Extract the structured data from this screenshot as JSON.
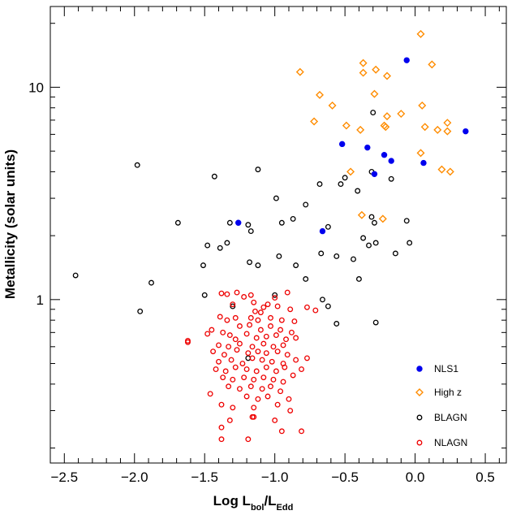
{
  "chart_data": {
    "type": "scatter",
    "title": "",
    "xlabel": {
      "base": "Log L",
      "sub1": "bol",
      "sep": "/L",
      "sub2": "Edd"
    },
    "ylabel": "Metallicity (solar units)",
    "xlim": [
      -2.6,
      0.65
    ],
    "ylim": [
      0.17,
      24
    ],
    "yscale": "log",
    "x_ticks": [
      {
        "value": -2.5,
        "label": "−2.5"
      },
      {
        "value": -2.0,
        "label": "−2.0"
      },
      {
        "value": -1.5,
        "label": "−1.5"
      },
      {
        "value": -1.0,
        "label": "−1.0"
      },
      {
        "value": -0.5,
        "label": "−0.5"
      },
      {
        "value": 0.0,
        "label": "0.0"
      },
      {
        "value": 0.5,
        "label": "0.5"
      }
    ],
    "y_ticks": [
      {
        "value": 1,
        "label": "1"
      },
      {
        "value": 10,
        "label": "10"
      }
    ],
    "legend_position": "bottom-right",
    "series": [
      {
        "name": "NLS1",
        "marker": "filled-circle",
        "color": "#0000ee",
        "points": [
          [
            -0.06,
            13.4
          ],
          [
            0.36,
            6.2
          ],
          [
            -0.52,
            5.4
          ],
          [
            -0.34,
            5.2
          ],
          [
            -0.22,
            4.8
          ],
          [
            -0.17,
            4.5
          ],
          [
            0.06,
            4.4
          ],
          [
            -0.29,
            3.9
          ],
          [
            -1.26,
            2.3
          ],
          [
            -0.66,
            2.1
          ]
        ]
      },
      {
        "name": "High z",
        "marker": "diamond",
        "color": "#ff8c00",
        "points": [
          [
            0.04,
            17.8
          ],
          [
            -0.37,
            13.0
          ],
          [
            0.12,
            12.8
          ],
          [
            -0.82,
            11.8
          ],
          [
            -0.37,
            11.7
          ],
          [
            -0.28,
            12.1
          ],
          [
            -0.2,
            11.3
          ],
          [
            -0.68,
            9.2
          ],
          [
            -0.29,
            9.3
          ],
          [
            -0.59,
            8.2
          ],
          [
            0.05,
            8.2
          ],
          [
            -0.2,
            7.3
          ],
          [
            -0.1,
            7.5
          ],
          [
            -0.72,
            6.9
          ],
          [
            -0.49,
            6.6
          ],
          [
            -0.22,
            6.6
          ],
          [
            -0.21,
            6.5
          ],
          [
            -0.39,
            6.3
          ],
          [
            0.07,
            6.5
          ],
          [
            0.16,
            6.3
          ],
          [
            0.23,
            6.2
          ],
          [
            0.23,
            6.8
          ],
          [
            0.04,
            4.9
          ],
          [
            0.19,
            4.1
          ],
          [
            0.25,
            4.0
          ],
          [
            -0.46,
            4.0
          ],
          [
            -0.38,
            2.5
          ],
          [
            -0.23,
            2.4
          ]
        ]
      },
      {
        "name": "BLAGN",
        "marker": "open-circle",
        "color": "#000000",
        "points": [
          [
            -1.98,
            4.3
          ],
          [
            -1.43,
            3.8
          ],
          [
            -1.12,
            4.1
          ],
          [
            -0.3,
            7.6
          ],
          [
            -0.5,
            3.75
          ],
          [
            -0.53,
            3.5
          ],
          [
            -0.41,
            3.25
          ],
          [
            -0.31,
            4.0
          ],
          [
            -0.17,
            3.7
          ],
          [
            -0.68,
            3.5
          ],
          [
            -0.99,
            3.0
          ],
          [
            -0.78,
            2.8
          ],
          [
            -0.87,
            2.4
          ],
          [
            -0.95,
            2.3
          ],
          [
            -1.32,
            2.3
          ],
          [
            -1.19,
            2.25
          ],
          [
            -1.17,
            2.1
          ],
          [
            -1.69,
            2.3
          ],
          [
            -0.62,
            2.2
          ],
          [
            -0.31,
            2.45
          ],
          [
            -0.29,
            2.3
          ],
          [
            -0.06,
            2.35
          ],
          [
            -0.37,
            1.95
          ],
          [
            -1.34,
            1.85
          ],
          [
            -1.39,
            1.75
          ],
          [
            -1.48,
            1.8
          ],
          [
            -1.51,
            1.45
          ],
          [
            -1.18,
            1.5
          ],
          [
            -1.12,
            1.45
          ],
          [
            -0.97,
            1.6
          ],
          [
            -0.85,
            1.45
          ],
          [
            -0.67,
            1.65
          ],
          [
            -0.56,
            1.6
          ],
          [
            -0.44,
            1.55
          ],
          [
            -0.33,
            1.8
          ],
          [
            -0.28,
            1.85
          ],
          [
            -0.14,
            1.65
          ],
          [
            -0.04,
            1.85
          ],
          [
            -0.78,
            1.25
          ],
          [
            -0.4,
            1.25
          ],
          [
            -2.42,
            1.3
          ],
          [
            -1.88,
            1.2
          ],
          [
            -1.5,
            1.05
          ],
          [
            -1.0,
            1.05
          ],
          [
            -0.66,
            1.0
          ],
          [
            -0.62,
            0.93
          ],
          [
            -1.3,
            0.93
          ],
          [
            -1.96,
            0.88
          ],
          [
            -0.56,
            0.77
          ],
          [
            -0.28,
            0.78
          ],
          [
            -1.19,
            0.53
          ]
        ]
      },
      {
        "name": "NLAGN",
        "marker": "open-circle",
        "color": "#ee0000",
        "points": [
          [
            -1.38,
            1.07
          ],
          [
            -1.34,
            1.06
          ],
          [
            -1.27,
            1.08
          ],
          [
            -1.22,
            1.03
          ],
          [
            -1.17,
            1.05
          ],
          [
            -1.0,
            1.02
          ],
          [
            -0.91,
            1.08
          ],
          [
            -1.15,
            0.97
          ],
          [
            -1.08,
            0.92
          ],
          [
            -1.3,
            0.95
          ],
          [
            -1.14,
            0.88
          ],
          [
            -1.1,
            0.87
          ],
          [
            -1.05,
            0.95
          ],
          [
            -0.98,
            0.93
          ],
          [
            -0.89,
            0.9
          ],
          [
            -0.77,
            0.92
          ],
          [
            -0.71,
            0.89
          ],
          [
            -1.39,
            0.83
          ],
          [
            -1.34,
            0.8
          ],
          [
            -1.28,
            0.82
          ],
          [
            -1.17,
            0.82
          ],
          [
            -1.12,
            0.8
          ],
          [
            -1.03,
            0.82
          ],
          [
            -0.95,
            0.8
          ],
          [
            -0.86,
            0.79
          ],
          [
            -1.45,
            0.72
          ],
          [
            -1.37,
            0.7
          ],
          [
            -1.25,
            0.75
          ],
          [
            -1.18,
            0.76
          ],
          [
            -1.1,
            0.72
          ],
          [
            -1.03,
            0.75
          ],
          [
            -0.96,
            0.72
          ],
          [
            -0.88,
            0.7
          ],
          [
            -1.48,
            0.69
          ],
          [
            -1.32,
            0.68
          ],
          [
            -1.28,
            0.65
          ],
          [
            -1.2,
            0.69
          ],
          [
            -1.13,
            0.66
          ],
          [
            -1.06,
            0.67
          ],
          [
            -0.99,
            0.68
          ],
          [
            -0.92,
            0.65
          ],
          [
            -0.85,
            0.66
          ],
          [
            -1.62,
            0.64
          ],
          [
            -1.62,
            0.63
          ],
          [
            -1.4,
            0.61
          ],
          [
            -1.33,
            0.6
          ],
          [
            -1.25,
            0.62
          ],
          [
            -1.16,
            0.6
          ],
          [
            -1.08,
            0.62
          ],
          [
            -1.01,
            0.6
          ],
          [
            -0.94,
            0.61
          ],
          [
            -1.44,
            0.57
          ],
          [
            -1.36,
            0.55
          ],
          [
            -1.27,
            0.58
          ],
          [
            -1.19,
            0.56
          ],
          [
            -1.12,
            0.57
          ],
          [
            -1.06,
            0.56
          ],
          [
            -0.98,
            0.57
          ],
          [
            -0.91,
            0.55
          ],
          [
            -1.4,
            0.51
          ],
          [
            -1.31,
            0.52
          ],
          [
            -1.23,
            0.5
          ],
          [
            -1.16,
            0.53
          ],
          [
            -1.09,
            0.52
          ],
          [
            -1.02,
            0.51
          ],
          [
            -0.94,
            0.5
          ],
          [
            -0.85,
            0.52
          ],
          [
            -0.77,
            0.53
          ],
          [
            -1.42,
            0.47
          ],
          [
            -1.35,
            0.46
          ],
          [
            -1.28,
            0.48
          ],
          [
            -1.2,
            0.47
          ],
          [
            -1.13,
            0.46
          ],
          [
            -1.06,
            0.48
          ],
          [
            -0.99,
            0.46
          ],
          [
            -0.93,
            0.48
          ],
          [
            -0.81,
            0.47
          ],
          [
            -1.37,
            0.43
          ],
          [
            -1.3,
            0.42
          ],
          [
            -1.22,
            0.43
          ],
          [
            -1.15,
            0.42
          ],
          [
            -1.08,
            0.43
          ],
          [
            -1.01,
            0.42
          ],
          [
            -0.94,
            0.41
          ],
          [
            -0.87,
            0.44
          ],
          [
            -1.33,
            0.39
          ],
          [
            -1.25,
            0.38
          ],
          [
            -1.17,
            0.39
          ],
          [
            -1.09,
            0.38
          ],
          [
            -1.03,
            0.39
          ],
          [
            -0.96,
            0.37
          ],
          [
            -1.46,
            0.36
          ],
          [
            -1.2,
            0.35
          ],
          [
            -1.12,
            0.34
          ],
          [
            -1.05,
            0.35
          ],
          [
            -0.9,
            0.34
          ],
          [
            -1.38,
            0.32
          ],
          [
            -1.3,
            0.31
          ],
          [
            -1.15,
            0.31
          ],
          [
            -0.98,
            0.32
          ],
          [
            -0.89,
            0.3
          ],
          [
            -1.16,
            0.28
          ],
          [
            -1.15,
            0.28
          ],
          [
            -1.32,
            0.27
          ],
          [
            -1.0,
            0.27
          ],
          [
            -1.38,
            0.25
          ],
          [
            -0.95,
            0.24
          ],
          [
            -0.81,
            0.24
          ],
          [
            -1.38,
            0.22
          ],
          [
            -1.19,
            0.22
          ]
        ]
      }
    ]
  }
}
